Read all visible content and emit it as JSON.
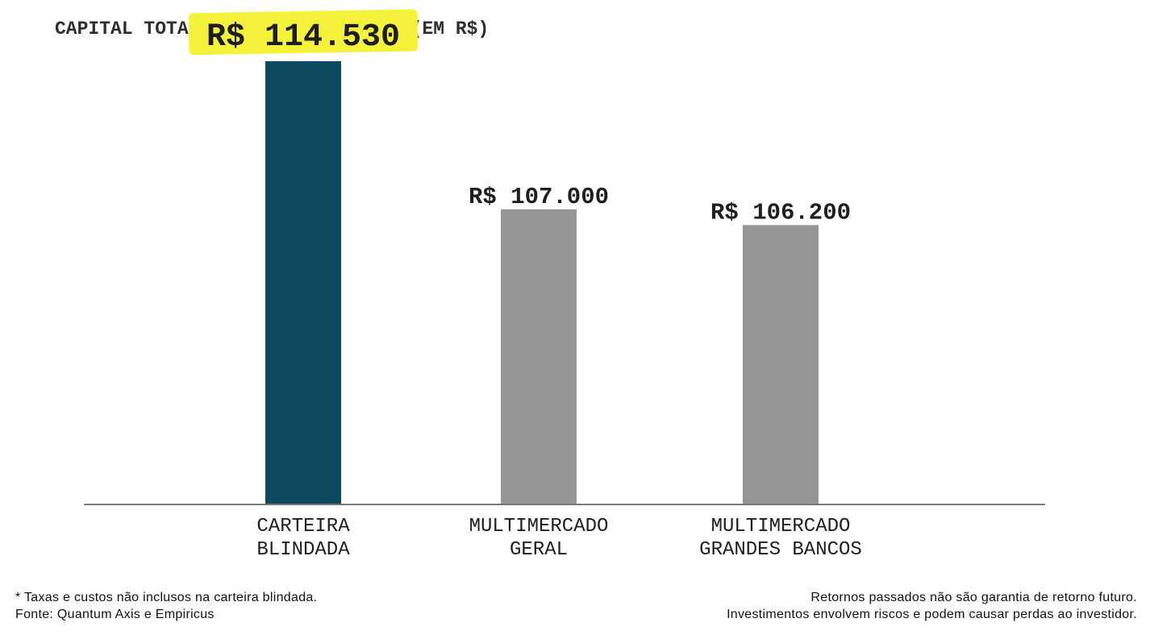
{
  "chart_data": {
    "type": "bar",
    "title": "CAPITAL TOTAL ACUMULADO EM 2018 (EM R$)",
    "categories": [
      [
        "CARTEIRA",
        "BLINDADA"
      ],
      [
        "MULTIMERCADO",
        "GERAL"
      ],
      [
        "MULTIMERCADO",
        "GRANDES BANCOS"
      ]
    ],
    "values": [
      114530,
      107000,
      106200
    ],
    "value_labels": [
      "R$ 114.530",
      "R$ 107.000",
      "R$ 106.200"
    ],
    "highlighted_index": 0,
    "xlabel": "",
    "ylabel": "",
    "ylim": [
      92000,
      116000
    ],
    "grid": false,
    "legend": "none"
  },
  "colors": {
    "highlight_bar": "#0d4a62",
    "other_bar": "#959496",
    "highlight_marker": "#f4f23a",
    "baseline": "#777777"
  },
  "footnotes": {
    "left": [
      "* Taxas e custos não inclusos na carteira blindada.",
      "Fonte: Quantum Axis e Empiricus"
    ],
    "right": [
      "Retornos passados não são garantia de retorno futuro.",
      "Investimentos envolvem riscos e podem causar perdas ao investidor."
    ]
  }
}
